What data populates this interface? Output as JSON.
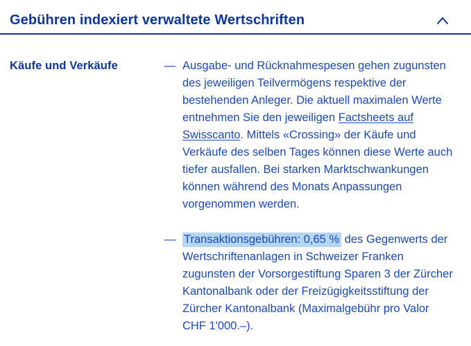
{
  "colors": {
    "heading_blue": "#0b35a5",
    "text_blue": "#1a49c0",
    "highlight_blue": "#b5d6f3"
  },
  "header": {
    "title": "Gebühren indexiert verwaltete Wertschriften",
    "state_icon": "chevron-up-icon"
  },
  "section": {
    "label": "Käufe und Verkäufe",
    "items": [
      {
        "marker": "—",
        "segments": [
          {
            "style": "plain",
            "text": "Ausgabe- und Rücknahmespesen gehen zugunsten des jeweiligen Teilvermögens respektive der bestehenden Anleger. Die aktuell maximalen Werte entnehmen Sie den jeweiligen "
          },
          {
            "style": "link",
            "text": "Factsheets auf Swisscanto"
          },
          {
            "style": "plain",
            "text": ". Mittels «Crossing» der Käufe und Verkäufe des selben Tages können diese Werte auch tiefer ausfallen. Bei starken Marktschwankungen können während des Monats Anpassungen vorgenommen werden."
          }
        ]
      },
      {
        "marker": "—",
        "segments": [
          {
            "style": "highlight",
            "text": "Transaktionsgebühren: 0,65 %"
          },
          {
            "style": "plain",
            "text": " des Gegenwerts der Wertschriftenanlagen in Schweizer Franken zugunsten der Vorsorgestiftung Sparen 3 der Zürcher Kantonalbank oder der Freizügigkeitsstiftung der Zürcher Kantonalbank (Maximalgebühr pro Valor CHF 1'000.–)."
          }
        ]
      }
    ]
  }
}
